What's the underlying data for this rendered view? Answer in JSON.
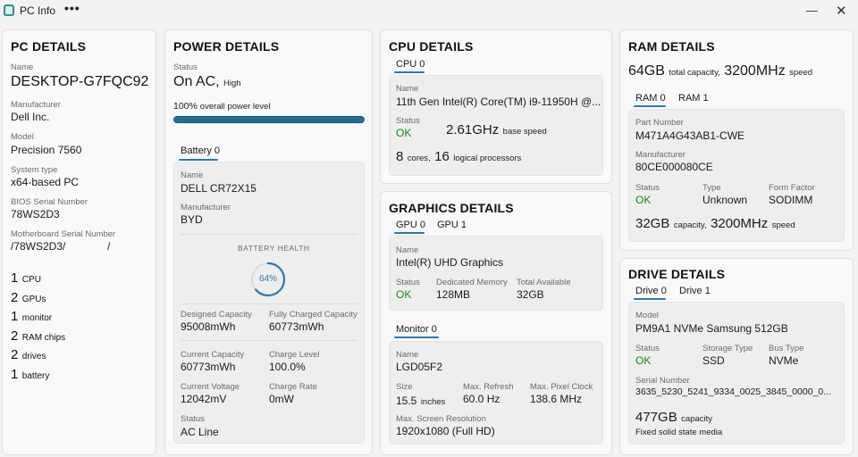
{
  "window": {
    "title": "PC Info",
    "more": "•••",
    "minimize": "—",
    "close": "✕"
  },
  "pc": {
    "heading": "PC DETAILS",
    "name_label": "Name",
    "name": "DESKTOP-G7FQC92",
    "manufacturer_label": "Manufacturer",
    "manufacturer": "Dell Inc.",
    "model_label": "Model",
    "model": "Precision 7560",
    "system_type_label": "System type",
    "system_type": "x64-based PC",
    "bios_label": "BIOS Serial Number",
    "bios": "78WS2D3",
    "mobo_label": "Motherboard Serial Number",
    "mobo": "/78WS2D3/              /",
    "counts": [
      {
        "num": "1",
        "label": "CPU"
      },
      {
        "num": "2",
        "label": "GPUs"
      },
      {
        "num": "1",
        "label": "monitor"
      },
      {
        "num": "2",
        "label": "RAM chips"
      },
      {
        "num": "2",
        "label": "drives"
      },
      {
        "num": "1",
        "label": "battery"
      }
    ]
  },
  "power": {
    "heading": "POWER DETAILS",
    "status_label": "Status",
    "status": "On AC,",
    "status_sub": "High",
    "level_value": "100%",
    "level_text": "overall power level",
    "level_fraction": 1.0,
    "battery_tab": "Battery 0",
    "bat_name_label": "Name",
    "bat_name": "DELL CR72X15",
    "bat_mfr_label": "Manufacturer",
    "bat_mfr": "BYD",
    "health_label": "BATTERY HEALTH",
    "health_value": "64%",
    "health_fraction": 0.64,
    "designed_label": "Designed Capacity",
    "designed": "95008mWh",
    "full_label": "Fully Charged Capacity",
    "full": "60773mWh",
    "current_cap_label": "Current Capacity",
    "current_cap": "60773mWh",
    "charge_level_label": "Charge Level",
    "charge_level": "100.0%",
    "voltage_label": "Current Voltage",
    "voltage": "12042mV",
    "charge_rate_label": "Charge Rate",
    "charge_rate": "0mW",
    "bat_status_label": "Status",
    "bat_status": "AC Line"
  },
  "cpu": {
    "heading": "CPU DETAILS",
    "tab": "CPU 0",
    "name_label": "Name",
    "name": "11th Gen Intel(R) Core(TM) i9-11950H @...",
    "status_label": "Status",
    "status": "OK",
    "speed": "2.61GHz",
    "speed_sub": "base speed",
    "cores": "8",
    "cores_label": "cores,",
    "logical": "16",
    "logical_label": "logical processors"
  },
  "graphics": {
    "heading": "GRAPHICS DETAILS",
    "tabs": [
      "GPU 0",
      "GPU 1"
    ],
    "name_label": "Name",
    "name": "Intel(R) UHD Graphics",
    "status_label": "Status",
    "status": "OK",
    "vram_label": "Dedicated Memory",
    "vram": "128MB",
    "total_label": "Total Available",
    "total": "32GB",
    "monitor_tab": "Monitor 0",
    "mon_name_label": "Name",
    "mon_name": "LGD05F2",
    "size_label": "Size",
    "size": "15.5",
    "size_unit": "inches",
    "refresh_label": "Max. Refresh",
    "refresh": "60.0 Hz",
    "clock_label": "Max. Pixel Clock",
    "clock": "138.6 MHz",
    "res_label": "Max. Screen Resolution",
    "res": "1920x1080 (Full HD)"
  },
  "ram": {
    "heading": "RAM DETAILS",
    "total": "64GB",
    "total_sub": "total capacity,",
    "speed": "3200MHz",
    "speed_sub": "speed",
    "tabs": [
      "RAM 0",
      "RAM 1"
    ],
    "part_label": "Part Number",
    "part": "M471A4G43AB1-CWE",
    "mfr_label": "Manufacturer",
    "mfr": "80CE000080CE",
    "status_label": "Status",
    "status": "OK",
    "type_label": "Type",
    "type": "Unknown",
    "form_label": "Form Factor",
    "form": "SODIMM",
    "cap": "32GB",
    "cap_sub": "capacity,",
    "chip_speed": "3200MHz",
    "chip_speed_sub": "speed"
  },
  "drive": {
    "heading": "DRIVE DETAILS",
    "tabs": [
      "Drive 0",
      "Drive 1"
    ],
    "model_label": "Model",
    "model": "PM9A1 NVMe Samsung 512GB",
    "status_label": "Status",
    "status": "OK",
    "storage_label": "Storage Type",
    "storage": "SSD",
    "bus_label": "Bus Type",
    "bus": "NVMe",
    "serial_label": "Serial Number",
    "serial": "3635_5230_5241_9334_0025_3845_0000_0...",
    "capacity": "477GB",
    "capacity_sub": "capacity",
    "media": "Fixed solid state media"
  }
}
